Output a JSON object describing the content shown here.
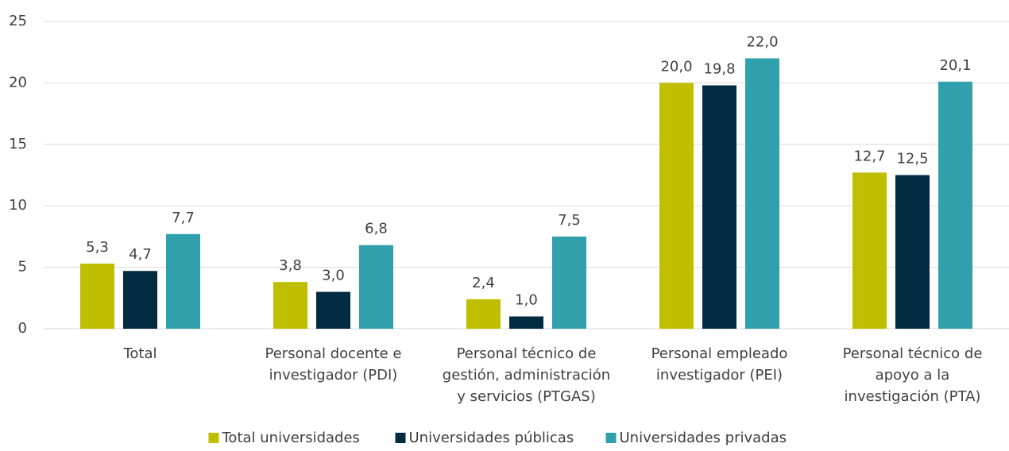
{
  "chart_data": {
    "type": "bar",
    "categories": [
      "Total",
      "Personal docente e\ninvestigador (PDI)",
      "Personal técnico de\ngestión, administración\ny servicios (PTGAS)",
      "Personal empleado\ninvestigador (PEI)",
      "Personal técnico de\napoyo a la\ninvestigación (PTA)"
    ],
    "series": [
      {
        "name": "Total universidades",
        "color": "#bfbf00",
        "values": [
          5.3,
          3.8,
          2.4,
          20.0,
          12.7
        ],
        "value_labels": [
          "5,3",
          "3,8",
          "2,4",
          "20,0",
          "12,7"
        ]
      },
      {
        "name": "Universidades públicas",
        "color": "#002b40",
        "values": [
          4.7,
          3.0,
          1.0,
          19.8,
          12.5
        ],
        "value_labels": [
          "4,7",
          "3,0",
          "1,0",
          "19,8",
          "12,5"
        ]
      },
      {
        "name": "Universidades privadas",
        "color": "#2fa0ac",
        "values": [
          7.7,
          6.8,
          7.5,
          22.0,
          20.1
        ],
        "value_labels": [
          "7,7",
          "6,8",
          "7,5",
          "22,0",
          "20,1"
        ]
      }
    ],
    "ylim": [
      0,
      25
    ],
    "yticks": [
      0,
      5,
      10,
      15,
      20,
      25
    ],
    "grid": true,
    "legend": "bottom"
  }
}
